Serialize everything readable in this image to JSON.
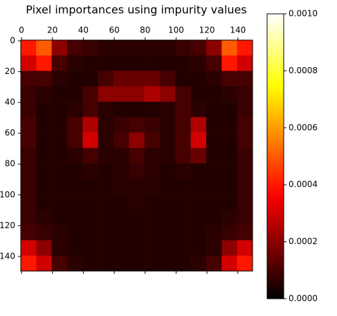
{
  "chart_data": {
    "type": "heatmap",
    "title": "Pixel importances using impurity values",
    "cmap": "hot",
    "clim": [
      0,
      0.001
    ],
    "xlim": [
      -0.5,
      149.5
    ],
    "ylim": [
      149.5,
      -0.5
    ],
    "xticks": [
      0,
      20,
      40,
      60,
      80,
      100,
      120,
      140
    ],
    "yticks": [
      0,
      20,
      40,
      60,
      80,
      100,
      120,
      140
    ],
    "cticks": [
      {
        "value": 0,
        "label": "0.0000"
      },
      {
        "value": 0.0002,
        "label": "0.0002"
      },
      {
        "value": 0.0004,
        "label": "0.0004"
      },
      {
        "value": 0.0006,
        "label": "0.0006"
      },
      {
        "value": 0.0008,
        "label": "0.0008"
      },
      {
        "value": 0.001,
        "label": "0.0010"
      }
    ],
    "z": [
      [
        0.0004,
        0.0005,
        0.0002,
        0.0001,
        8e-05,
        6e-05,
        6e-05,
        6e-05,
        6e-05,
        6e-05,
        8e-05,
        0.0001,
        0.0002,
        0.0005,
        0.0004
      ],
      [
        0.0003,
        0.0004,
        0.0001,
        6e-05,
        5e-05,
        5e-05,
        5e-05,
        5e-05,
        5e-05,
        5e-05,
        5e-05,
        6e-05,
        0.0001,
        0.0004,
        0.0003
      ],
      [
        0.0001,
        0.0001,
        6e-05,
        5e-05,
        5e-05,
        0.0001,
        0.00015,
        0.00015,
        0.00015,
        0.0001,
        5e-05,
        5e-05,
        6e-05,
        0.0001,
        0.0001
      ],
      [
        8e-05,
        6e-05,
        5e-05,
        5e-05,
        0.0001,
        0.0002,
        0.0002,
        0.0002,
        0.00025,
        0.0002,
        0.0001,
        5e-05,
        5e-05,
        6e-05,
        8e-05
      ],
      [
        8e-05,
        5e-05,
        5e-05,
        6e-05,
        0.0001,
        6e-05,
        5e-05,
        5e-05,
        5e-05,
        6e-05,
        0.0001,
        6e-05,
        5e-05,
        5e-05,
        8e-05
      ],
      [
        0.0001,
        5e-05,
        5e-05,
        0.0001,
        0.00025,
        6e-05,
        8e-05,
        0.0001,
        8e-05,
        6e-05,
        0.0001,
        0.00025,
        5e-05,
        5e-05,
        0.0001
      ],
      [
        0.0001,
        5e-05,
        5e-05,
        0.0001,
        0.0003,
        6e-05,
        0.0001,
        0.0002,
        0.0001,
        6e-05,
        0.0001,
        0.0003,
        5e-05,
        5e-05,
        0.0001
      ],
      [
        8e-05,
        5e-05,
        5e-05,
        6e-05,
        0.0001,
        6e-05,
        6e-05,
        0.0001,
        6e-05,
        6e-05,
        0.0001,
        0.00015,
        5e-05,
        5e-05,
        8e-05
      ],
      [
        8e-05,
        5e-05,
        5e-05,
        5e-05,
        6e-05,
        5e-05,
        6e-05,
        8e-05,
        6e-05,
        5e-05,
        6e-05,
        5e-05,
        5e-05,
        5e-05,
        8e-05
      ],
      [
        8e-05,
        5e-05,
        5e-05,
        5e-05,
        5e-05,
        5e-05,
        6e-05,
        6e-05,
        6e-05,
        5e-05,
        5e-05,
        5e-05,
        5e-05,
        5e-05,
        8e-05
      ],
      [
        8e-05,
        5e-05,
        5e-05,
        5e-05,
        5e-05,
        5e-05,
        5e-05,
        6e-05,
        5e-05,
        5e-05,
        5e-05,
        5e-05,
        5e-05,
        5e-05,
        8e-05
      ],
      [
        8e-05,
        6e-05,
        5e-05,
        5e-05,
        5e-05,
        5e-05,
        5e-05,
        5e-05,
        5e-05,
        5e-05,
        5e-05,
        5e-05,
        5e-05,
        6e-05,
        8e-05
      ],
      [
        0.0001,
        8e-05,
        6e-05,
        5e-05,
        5e-05,
        5e-05,
        5e-05,
        5e-05,
        5e-05,
        5e-05,
        5e-05,
        5e-05,
        6e-05,
        8e-05,
        0.0001
      ],
      [
        0.0003,
        0.0002,
        6e-05,
        5e-05,
        5e-05,
        5e-05,
        5e-05,
        5e-05,
        5e-05,
        5e-05,
        5e-05,
        5e-05,
        6e-05,
        0.0002,
        0.0003
      ],
      [
        0.0004,
        0.0003,
        0.0001,
        6e-05,
        5e-05,
        5e-05,
        5e-05,
        5e-05,
        5e-05,
        5e-05,
        5e-05,
        6e-05,
        0.0001,
        0.0003,
        0.0004
      ]
    ]
  }
}
